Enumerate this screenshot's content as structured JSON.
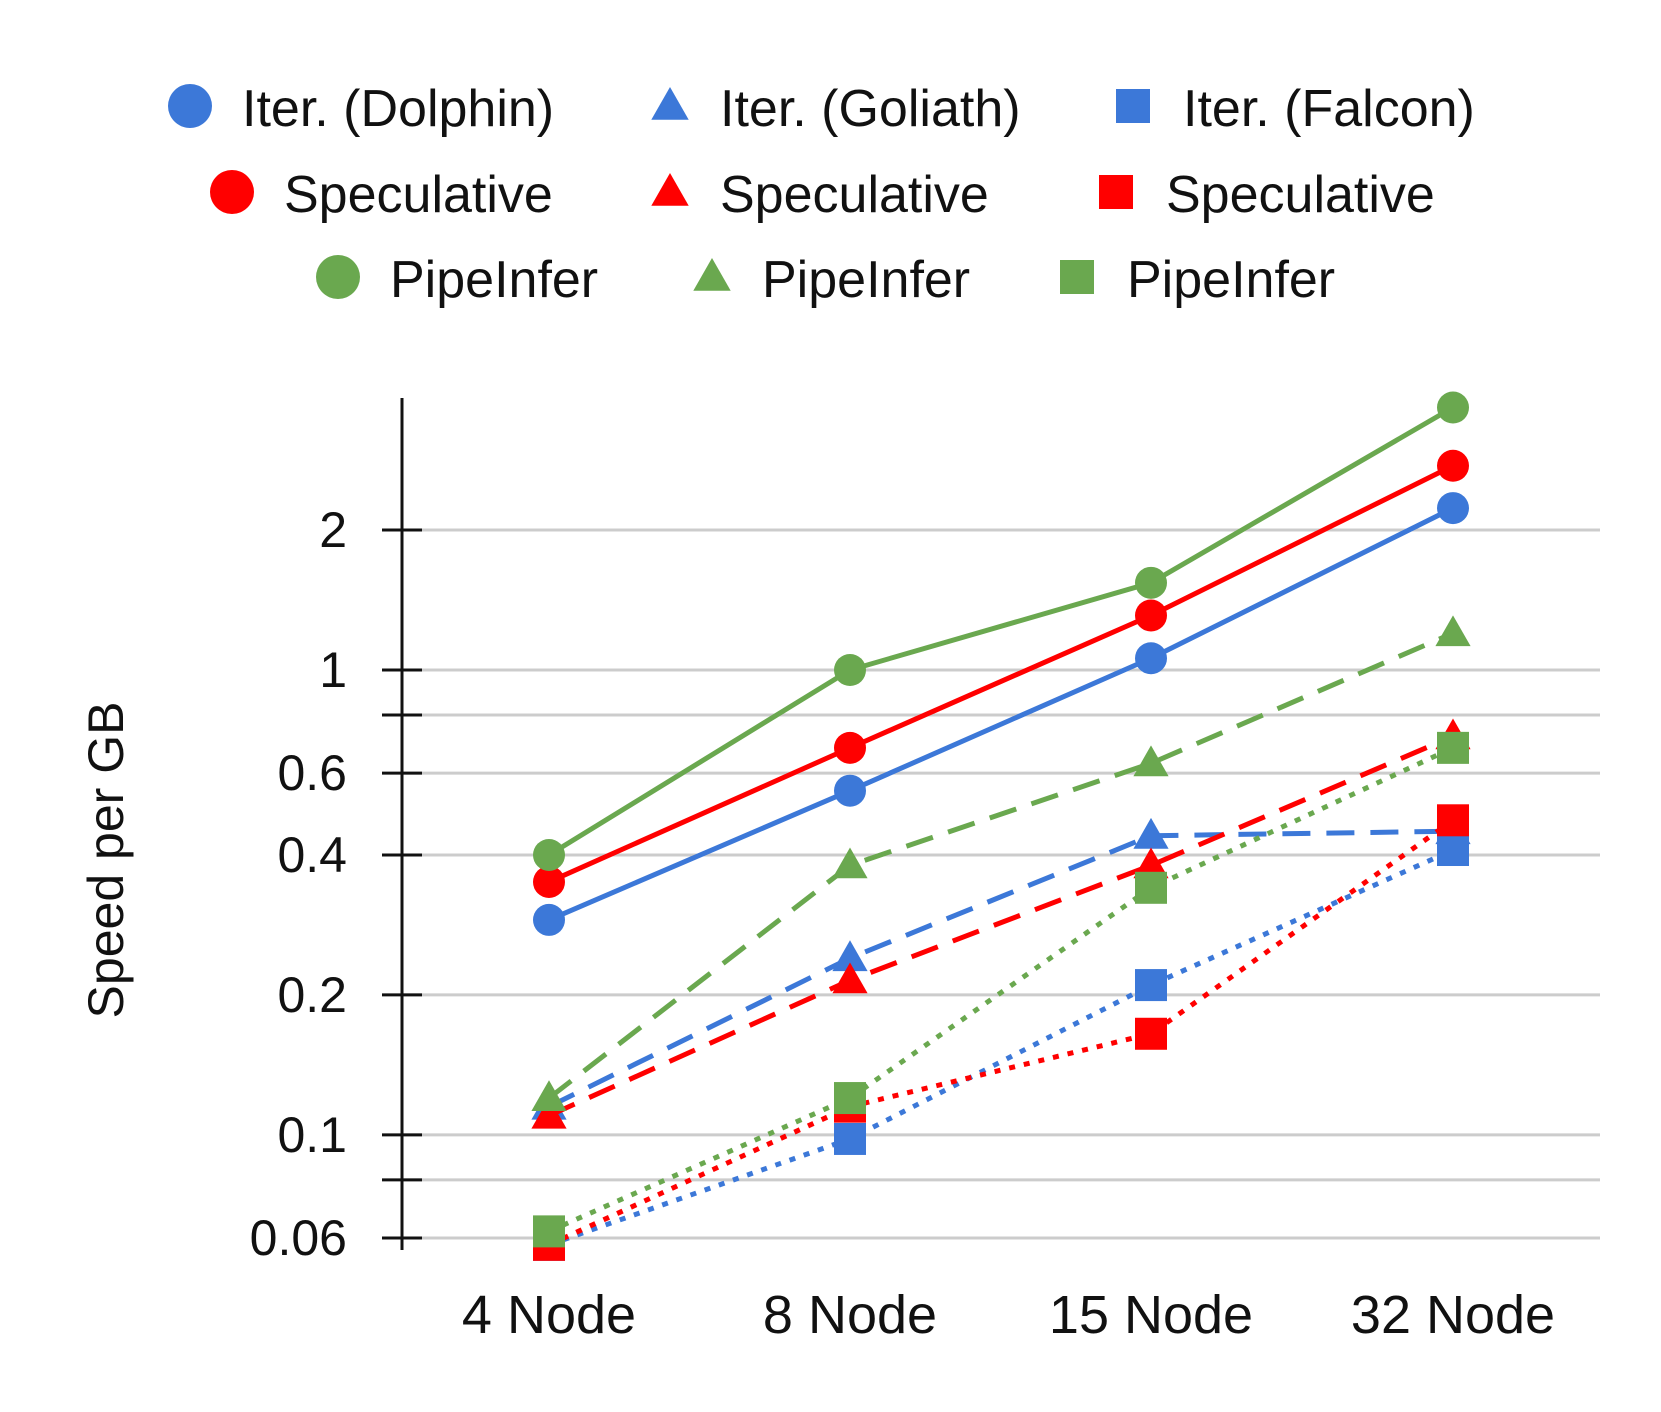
{
  "chart_data": {
    "type": "line",
    "title": "",
    "xlabel": "",
    "ylabel": "Speed per GB",
    "yscale": "log",
    "ylim": [
      0.06,
      4.0
    ],
    "grid": true,
    "legend_position": "top",
    "categories": [
      "4 Node",
      "8 Node",
      "15 Node",
      "32 Node"
    ],
    "y_ticks": [
      {
        "value": 0.06,
        "label": "0.06"
      },
      {
        "value": 0.08,
        "label": ""
      },
      {
        "value": 0.1,
        "label": "0.1"
      },
      {
        "value": 0.2,
        "label": "0.2"
      },
      {
        "value": 0.4,
        "label": "0.4"
      },
      {
        "value": 0.6,
        "label": "0.6"
      },
      {
        "value": 0.8,
        "label": ""
      },
      {
        "value": 1,
        "label": "1"
      },
      {
        "value": 2,
        "label": "2"
      }
    ],
    "series": [
      {
        "name": "Iter. (Dolphin)",
        "color": "#3c78d8",
        "marker": "circle",
        "dash": "solid",
        "values": [
          0.29,
          0.55,
          1.06,
          2.23
        ]
      },
      {
        "name": "Iter. (Goliath)",
        "color": "#3c78d8",
        "marker": "triangle",
        "dash": "dashed",
        "values": [
          0.115,
          0.24,
          0.44,
          0.45
        ]
      },
      {
        "name": "Iter. (Falcon)",
        "color": "#3c78d8",
        "marker": "square",
        "dash": "dotted",
        "values": [
          0.058,
          0.098,
          0.21,
          0.41
        ]
      },
      {
        "name": "Speculative",
        "color": "#ff0000",
        "marker": "circle",
        "dash": "solid",
        "values": [
          0.35,
          0.68,
          1.31,
          2.75
        ]
      },
      {
        "name": "Speculative",
        "color": "#ff0000",
        "marker": "triangle",
        "dash": "dashed",
        "values": [
          0.11,
          0.215,
          0.38,
          0.72
        ]
      },
      {
        "name": "Speculative",
        "color": "#ff0000",
        "marker": "square",
        "dash": "dotted",
        "values": [
          0.058,
          0.115,
          0.165,
          0.475
        ]
      },
      {
        "name": "PipeInfer",
        "color": "#6aa84f",
        "marker": "circle",
        "dash": "solid",
        "values": [
          0.4,
          1.0,
          1.54,
          3.67
        ]
      },
      {
        "name": "PipeInfer",
        "color": "#6aa84f",
        "marker": "triangle",
        "dash": "dashed",
        "values": [
          0.12,
          0.38,
          0.63,
          1.2
        ]
      },
      {
        "name": "PipeInfer",
        "color": "#6aa84f",
        "marker": "square",
        "dash": "dotted",
        "values": [
          0.062,
          0.12,
          0.34,
          0.68
        ]
      }
    ]
  }
}
